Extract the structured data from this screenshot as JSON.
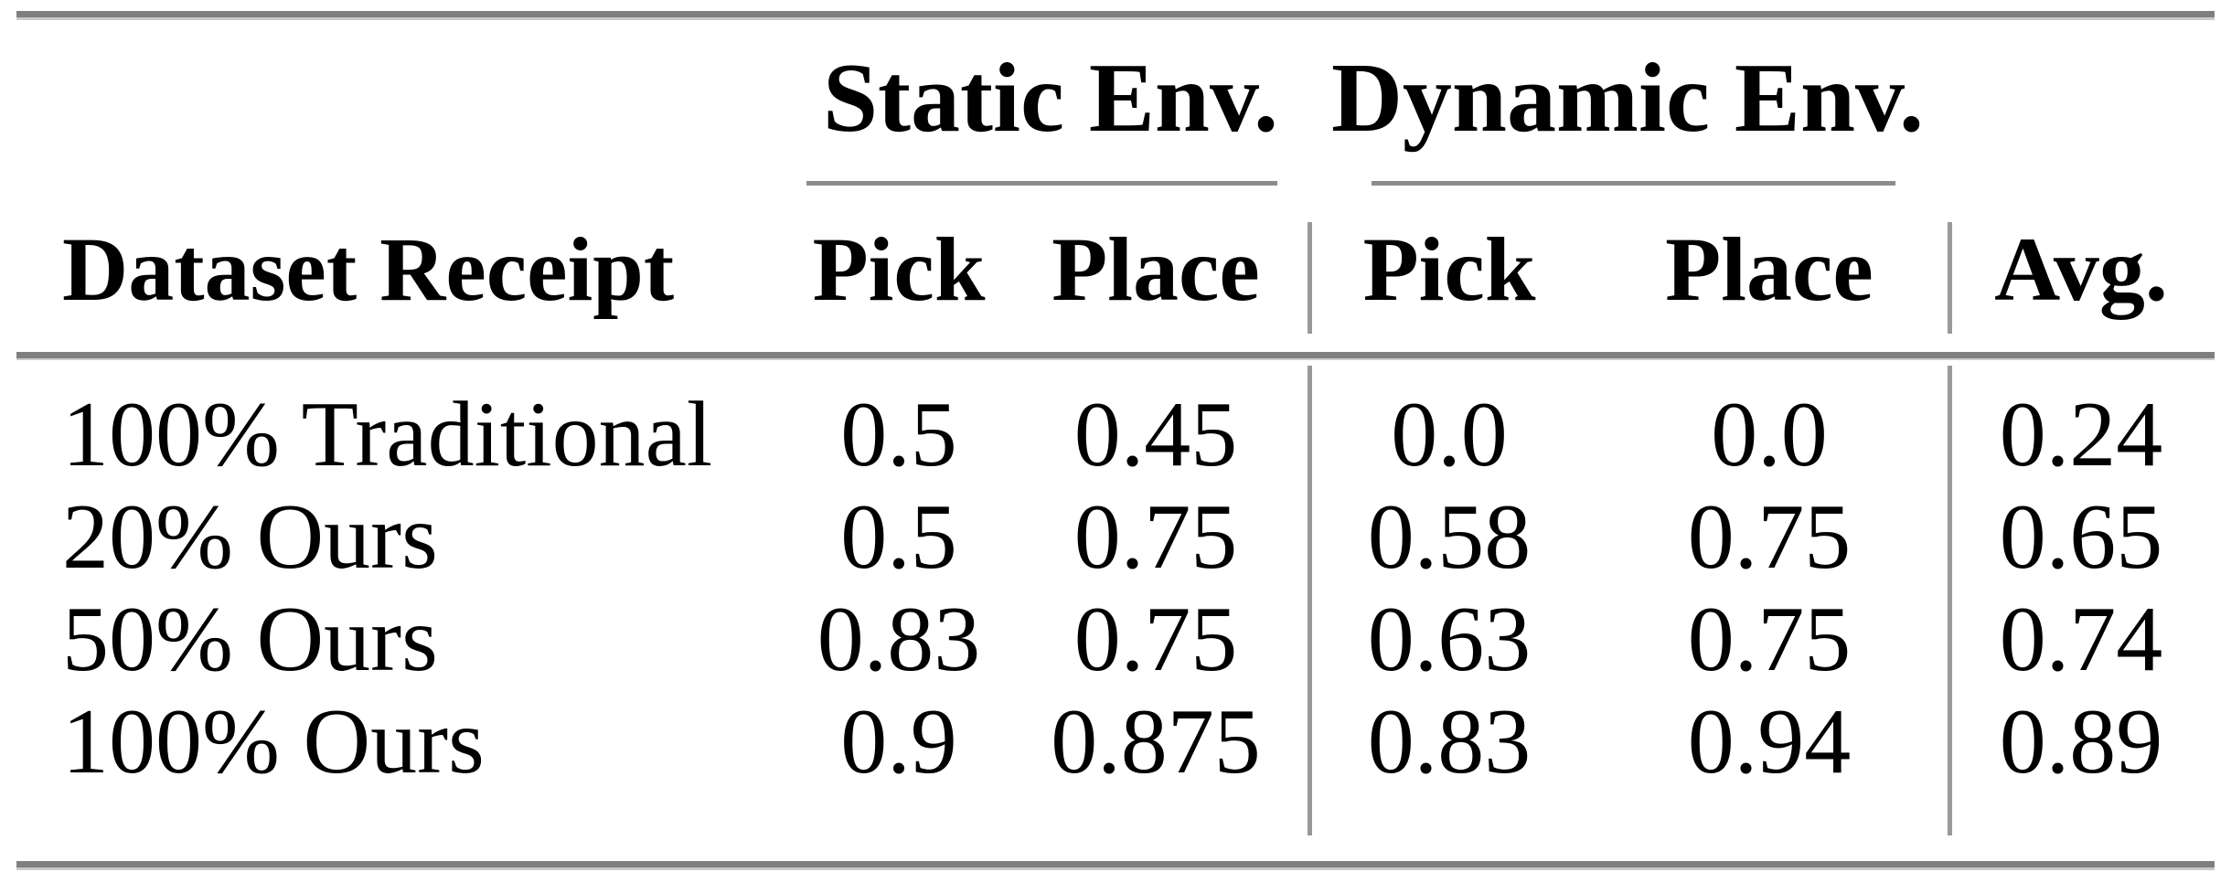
{
  "table": {
    "group_headers": {
      "static": "Static Env.",
      "dynamic": "Dynamic Env."
    },
    "columns": {
      "row_label": "Dataset Receipt",
      "static_pick": "Pick",
      "static_place": "Place",
      "dynamic_pick": "Pick",
      "dynamic_place": "Place",
      "avg": "Avg."
    },
    "rows": [
      {
        "label": "100% Traditional",
        "static_pick": "0.5",
        "static_place": "0.45",
        "dynamic_pick": "0.0",
        "dynamic_place": "0.0",
        "avg": "0.24"
      },
      {
        "label": "20% Ours",
        "static_pick": "0.5",
        "static_place": "0.75",
        "dynamic_pick": "0.58",
        "dynamic_place": "0.75",
        "avg": "0.65"
      },
      {
        "label": "50% Ours",
        "static_pick": "0.83",
        "static_place": "0.75",
        "dynamic_pick": "0.63",
        "dynamic_place": "0.75",
        "avg": "0.74"
      },
      {
        "label": "100% Ours",
        "static_pick": "0.9",
        "static_place": "0.875",
        "dynamic_pick": "0.83",
        "dynamic_place": "0.94",
        "avg": "0.89"
      }
    ],
    "colors": {
      "rule_heavy": "#7f7f7f",
      "rule_light": "#999999",
      "cmidrule": "#8c8c8c",
      "text": "#000000",
      "background": "#ffffff"
    }
  },
  "chart_data": {
    "type": "table",
    "title": "",
    "column_groups": [
      "",
      "Static Env.",
      "Static Env.",
      "Dynamic Env.",
      "Dynamic Env.",
      ""
    ],
    "columns": [
      "Dataset Receipt",
      "Pick",
      "Place",
      "Pick",
      "Place",
      "Avg."
    ],
    "rows": [
      [
        "100% Traditional",
        0.5,
        0.45,
        0.0,
        0.0,
        0.24
      ],
      [
        "20% Ours",
        0.5,
        0.75,
        0.58,
        0.75,
        0.65
      ],
      [
        "50% Ours",
        0.83,
        0.75,
        0.63,
        0.75,
        0.74
      ],
      [
        "100% Ours",
        0.9,
        0.875,
        0.83,
        0.94,
        0.89
      ]
    ]
  }
}
